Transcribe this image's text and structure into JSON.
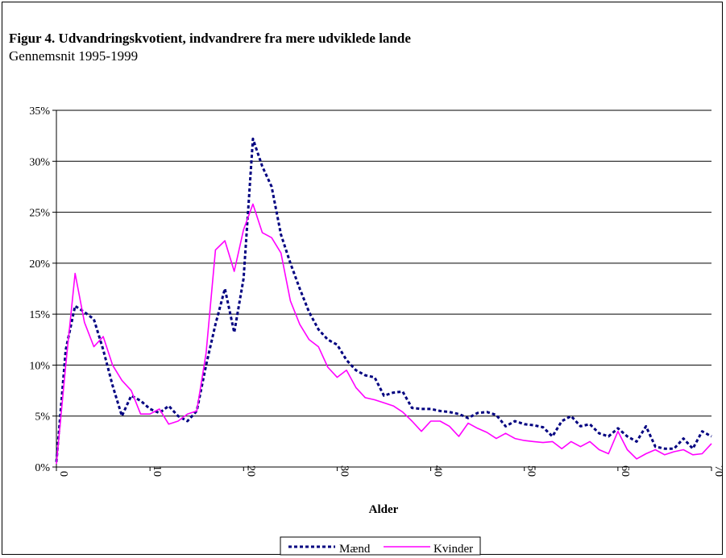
{
  "title": "Figur 4. Udvandringskvotient,  indvandrere fra mere udviklede lande",
  "subtitle": "Gennemsnit 1995-1999",
  "chart_data": {
    "type": "line",
    "xlabel": "Alder",
    "ylabel": "",
    "xlim": [
      0,
      70
    ],
    "ylim": [
      0,
      35
    ],
    "x_ticks": [
      0,
      10,
      20,
      30,
      40,
      50,
      60,
      70
    ],
    "y_ticks": [
      0,
      5,
      10,
      15,
      20,
      25,
      30,
      35
    ],
    "y_tick_labels": [
      "0%",
      "5%",
      "10%",
      "15%",
      "20%",
      "25%",
      "30%",
      "35%"
    ],
    "grid": "horizontal",
    "legend_position": "bottom",
    "x": [
      0,
      1,
      2,
      3,
      4,
      5,
      6,
      7,
      8,
      9,
      10,
      11,
      12,
      13,
      14,
      15,
      16,
      17,
      18,
      19,
      20,
      21,
      22,
      23,
      24,
      25,
      26,
      27,
      28,
      29,
      30,
      31,
      32,
      33,
      34,
      35,
      36,
      37,
      38,
      39,
      40,
      41,
      42,
      43,
      44,
      45,
      46,
      47,
      48,
      49,
      50,
      51,
      52,
      53,
      54,
      55,
      56,
      57,
      58,
      59,
      60,
      61,
      62,
      63,
      64,
      65,
      66,
      67,
      68,
      69,
      70
    ],
    "series": [
      {
        "name": "Mænd",
        "color": "#000080",
        "dash": "dotted",
        "values": [
          0.5,
          11.5,
          15.8,
          15.2,
          14.5,
          11.5,
          8.0,
          5.0,
          7.0,
          6.5,
          5.7,
          5.3,
          6.0,
          5.0,
          4.5,
          5.5,
          10.0,
          14.0,
          17.5,
          13.2,
          18.5,
          32.2,
          29.5,
          27.5,
          22.8,
          20.0,
          17.5,
          15.2,
          13.5,
          12.5,
          12.0,
          10.5,
          9.5,
          9.0,
          8.8,
          7.0,
          7.3,
          7.4,
          5.8,
          5.7,
          5.7,
          5.5,
          5.4,
          5.2,
          4.8,
          5.3,
          5.4,
          5.1,
          4.0,
          4.5,
          4.2,
          4.1,
          3.9,
          3.0,
          4.5,
          5.0,
          4.0,
          4.2,
          3.3,
          3.0,
          3.8,
          3.0,
          2.5,
          4.0,
          2.0,
          1.8,
          1.8,
          2.8,
          1.8,
          3.5,
          3.0
        ]
      },
      {
        "name": "Kvinder",
        "color": "#ff00ff",
        "dash": "solid",
        "values": [
          0.3,
          10.0,
          19.0,
          14.2,
          11.8,
          12.8,
          10.0,
          8.5,
          7.5,
          5.2,
          5.2,
          5.7,
          4.2,
          4.5,
          5.2,
          5.5,
          11.2,
          21.3,
          22.2,
          19.2,
          23.3,
          25.8,
          23.0,
          22.5,
          21.0,
          16.3,
          14.0,
          12.5,
          11.8,
          9.8,
          8.8,
          9.5,
          7.8,
          6.8,
          6.6,
          6.3,
          6.0,
          5.4,
          4.5,
          3.5,
          4.5,
          4.5,
          4.0,
          3.0,
          4.3,
          3.8,
          3.4,
          2.8,
          3.3,
          2.8,
          2.6,
          2.5,
          2.4,
          2.5,
          1.8,
          2.5,
          2.0,
          2.5,
          1.7,
          1.3,
          3.5,
          1.7,
          0.8,
          1.3,
          1.7,
          1.2,
          1.5,
          1.7,
          1.2,
          1.3,
          2.3
        ]
      }
    ]
  }
}
